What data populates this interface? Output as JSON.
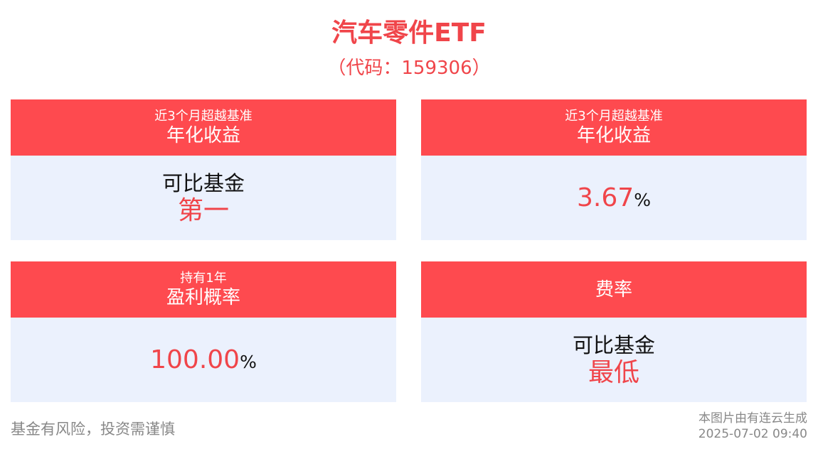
{
  "header": {
    "title": "汽车零件ETF",
    "subtitle": "（代码：159306）"
  },
  "cards": [
    {
      "header_lines": [
        "近3个月超越基准",
        "年化收益"
      ],
      "body_label": "可比基金",
      "body_value": "第一"
    },
    {
      "header_lines": [
        "近3个月超越基准",
        "年化收益"
      ],
      "body_value": "3.67",
      "body_unit": "%"
    },
    {
      "header_lines": [
        "持有1年",
        "盈利概率"
      ],
      "body_value": "100.00",
      "body_unit": "%"
    },
    {
      "header_lines": [
        "费率"
      ],
      "body_label": "可比基金",
      "body_value": "最低"
    }
  ],
  "footer": {
    "disclaimer": "基金有风险，投资需谨慎",
    "source": "本图片由有连云生成",
    "timestamp": "2025-07-02 09:40"
  }
}
